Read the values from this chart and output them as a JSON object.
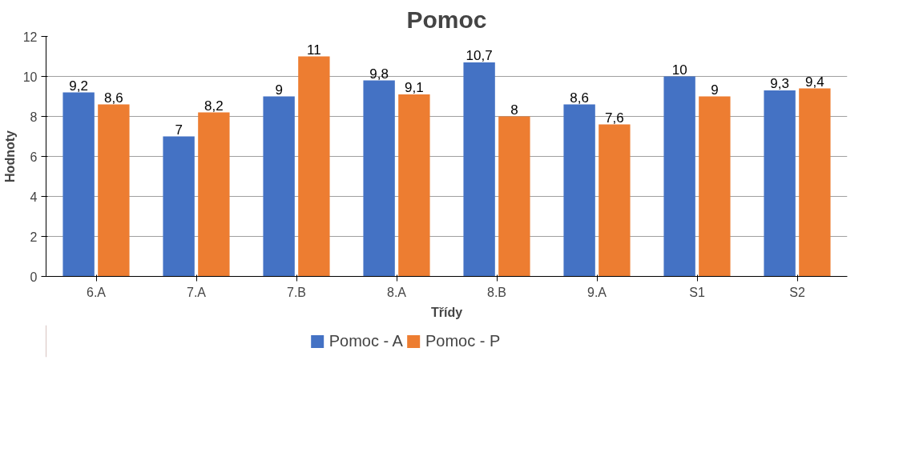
{
  "chart_data": {
    "type": "bar",
    "title": "Pomoc",
    "xlabel": "Třídy",
    "ylabel": "Hodnoty",
    "categories": [
      "6.A",
      "7.A",
      "7.B",
      "8.A",
      "8.B",
      "9.A",
      "S1",
      "S2"
    ],
    "series": [
      {
        "name": "Pomoc - A",
        "color": "#4472c4",
        "values": [
          9.2,
          7,
          9,
          9.8,
          10.7,
          8.6,
          10,
          9.3
        ],
        "value_labels": [
          "9,2",
          "7",
          "9",
          "9,8",
          "10,7",
          "8,6",
          "10",
          "9,3"
        ]
      },
      {
        "name": "Pomoc - P",
        "color": "#ed7d31",
        "values": [
          8.6,
          8.2,
          11,
          9.1,
          8,
          7.6,
          9,
          9.4
        ],
        "value_labels": [
          "8,6",
          "8,2",
          "11",
          "9,1",
          "8",
          "7,6",
          "9",
          "9,4"
        ]
      }
    ],
    "ylim": [
      0,
      12
    ],
    "yticks": [
      0,
      2,
      4,
      6,
      8,
      10,
      12
    ],
    "grid": "y",
    "legend": "bottom"
  }
}
